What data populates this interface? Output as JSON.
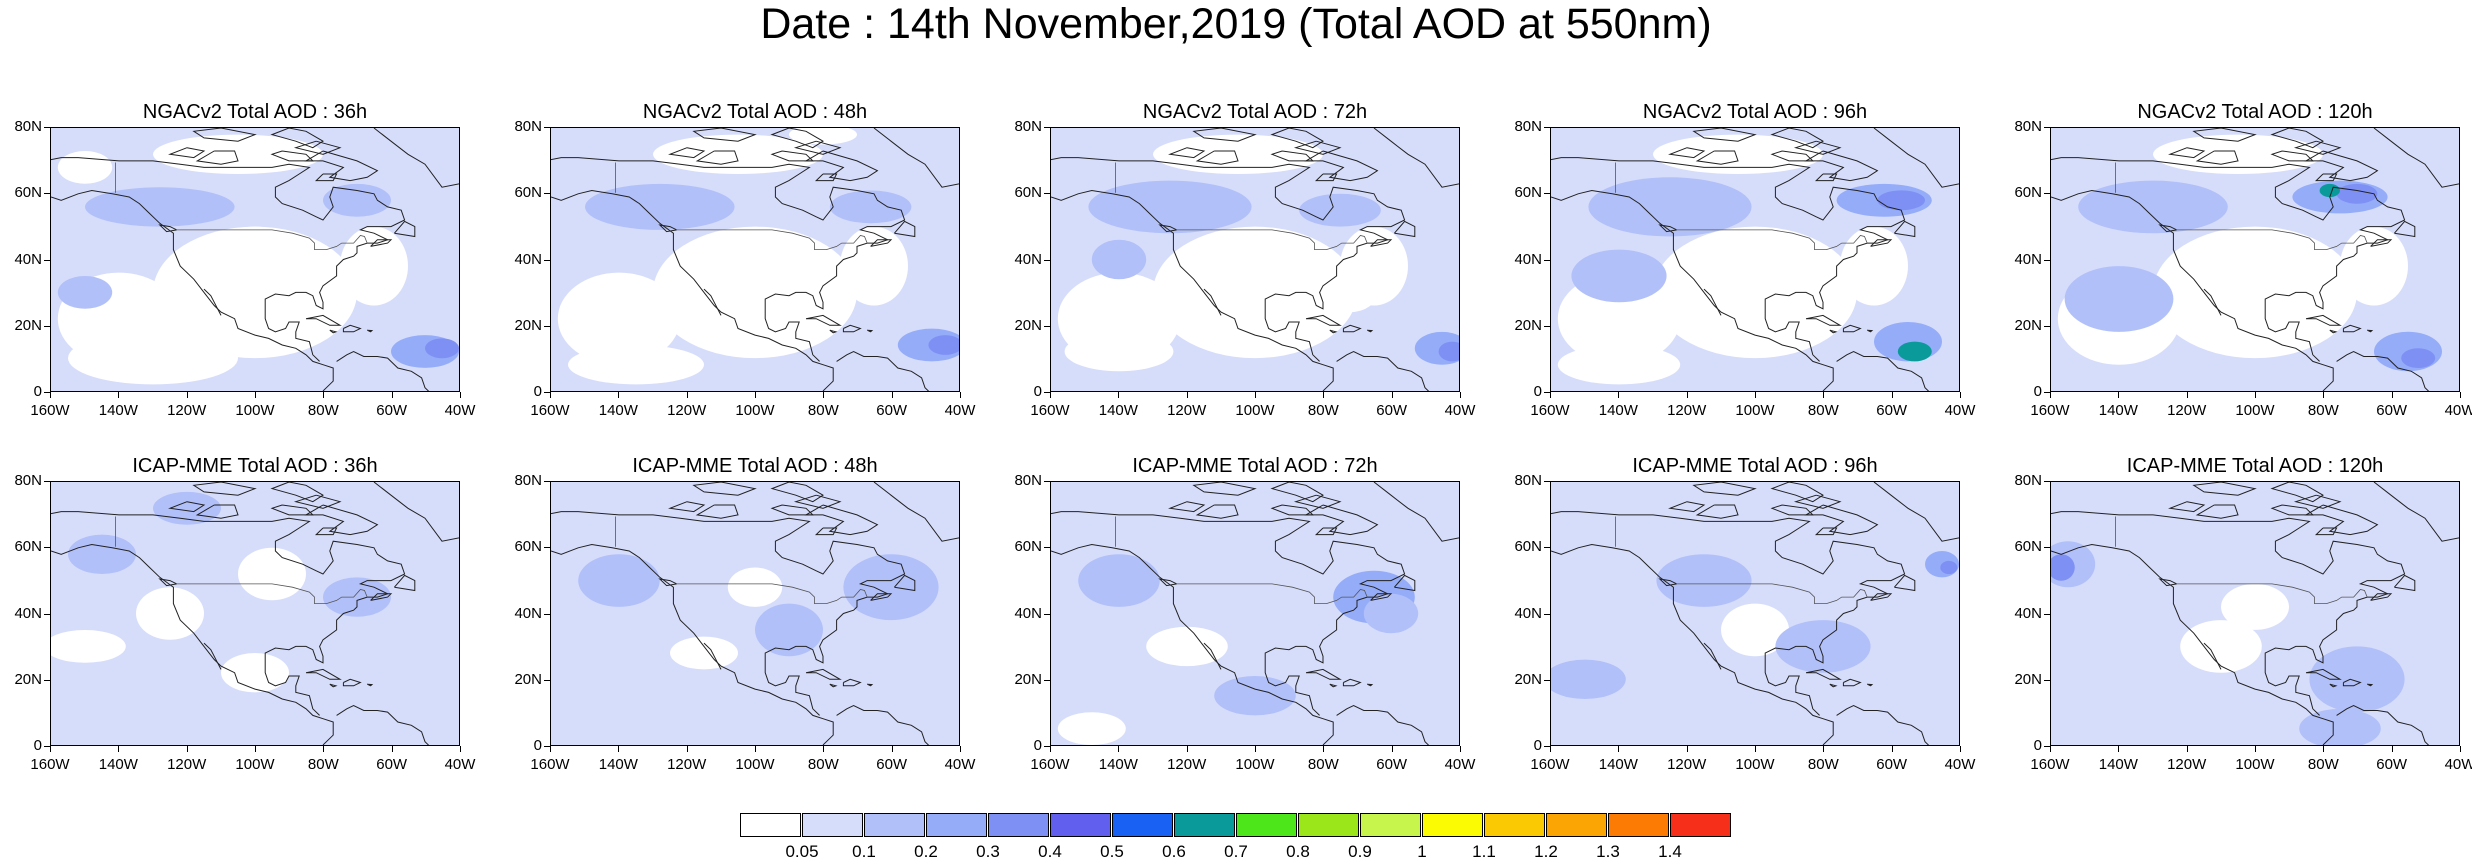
{
  "title": "Date : 14th November,2019 (Total AOD at 550nm)",
  "panels": [
    {
      "title": "NGACv2 Total AOD : 36h",
      "model": "NGACv2",
      "lead": "36h"
    },
    {
      "title": "NGACv2 Total AOD : 48h",
      "model": "NGACv2",
      "lead": "48h"
    },
    {
      "title": "NGACv2 Total AOD : 72h",
      "model": "NGACv2",
      "lead": "72h"
    },
    {
      "title": "NGACv2 Total AOD : 96h",
      "model": "NGACv2",
      "lead": "96h"
    },
    {
      "title": "NGACv2 Total AOD : 120h",
      "model": "NGACv2",
      "lead": "120h"
    },
    {
      "title": "ICAP-MME Total AOD : 36h",
      "model": "ICAP-MME",
      "lead": "36h"
    },
    {
      "title": "ICAP-MME Total AOD : 48h",
      "model": "ICAP-MME",
      "lead": "48h"
    },
    {
      "title": "ICAP-MME Total AOD : 72h",
      "model": "ICAP-MME",
      "lead": "72h"
    },
    {
      "title": "ICAP-MME Total AOD : 96h",
      "model": "ICAP-MME",
      "lead": "96h"
    },
    {
      "title": "ICAP-MME Total AOD : 120h",
      "model": "ICAP-MME",
      "lead": "120h"
    }
  ],
  "axes": {
    "y_ticks": [
      "80N",
      "60N",
      "40N",
      "20N",
      "0"
    ],
    "x_ticks": [
      "160W",
      "140W",
      "120W",
      "100W",
      "80W",
      "60W",
      "40W"
    ],
    "lat_range": [
      0,
      80
    ],
    "lon_range": [
      -160,
      -40
    ]
  },
  "colorbar": {
    "labels": [
      "0.05",
      "0.1",
      "0.2",
      "0.3",
      "0.4",
      "0.5",
      "0.6",
      "0.7",
      "0.8",
      "0.9",
      "1",
      "1.1",
      "1.2",
      "1.3",
      "1.4"
    ],
    "colors": [
      "#ffffff",
      "#d6ddfb",
      "#b2c0f9",
      "#95acf9",
      "#7f90f5",
      "#6160ee",
      "#1861f2",
      "#0b9a9a",
      "#4ce61a",
      "#9ae61a",
      "#c8f54c",
      "#fbfb04",
      "#fbc804",
      "#fba504",
      "#fb7b04",
      "#f52f1a"
    ]
  },
  "map_colors": {
    "clear": "#ffffff",
    "low": "#d6ddfb",
    "moderate": "#b2c0f9",
    "elevated": "#95acf9",
    "high": "#7f90f5",
    "peak": "#0b9a9a",
    "coastline": "#222222"
  }
}
